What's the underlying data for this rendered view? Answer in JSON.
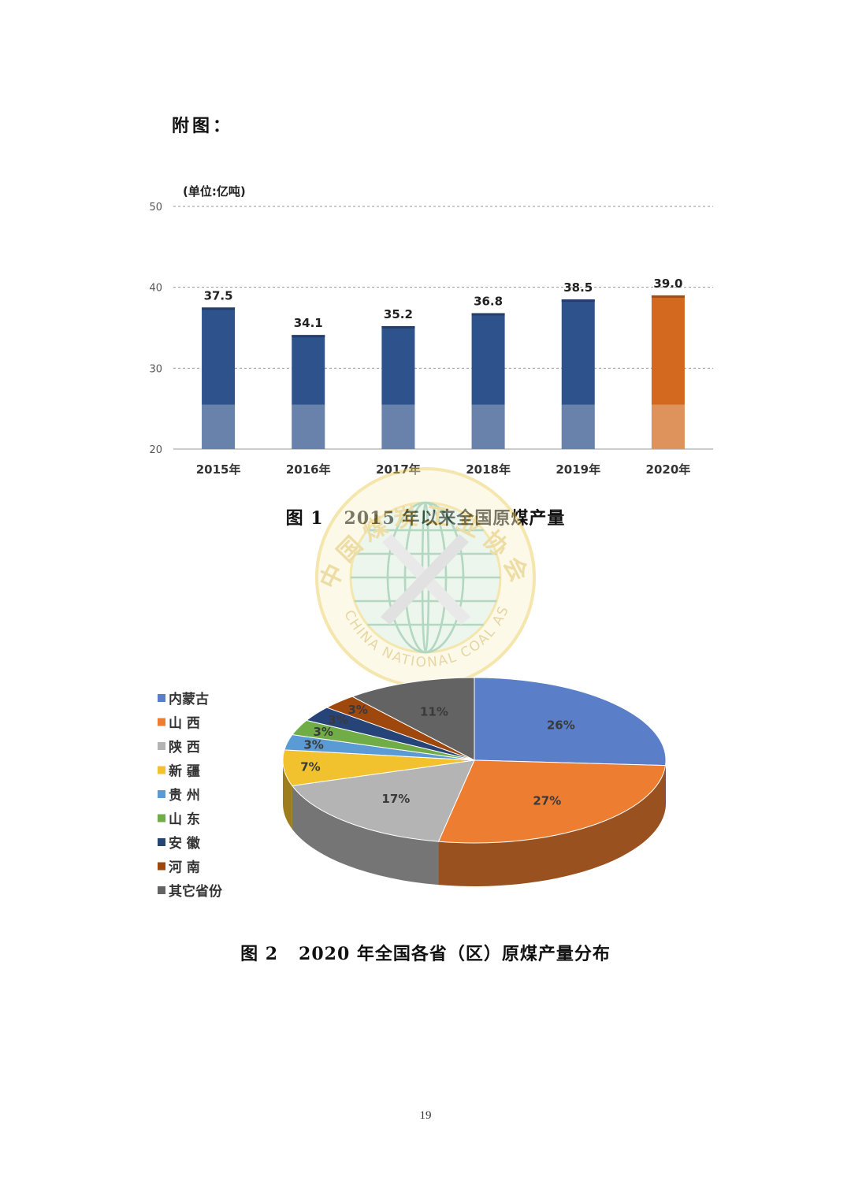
{
  "page": {
    "appendix_heading": "附图：",
    "page_number": "19"
  },
  "figure1": {
    "caption_number": "图 1",
    "caption_text": "2015 年以来全国原煤产量"
  },
  "figure2": {
    "caption_number": "图 2",
    "caption_text": "2020 年全国各省（区）原煤产量分布"
  },
  "watermark": {
    "name_cn": "中国煤炭工业协会",
    "name_en": "CHINA NATIONAL COAL ASSOCIATION"
  },
  "colors": {
    "bar_default": "#2e528c",
    "bar_highlight": "#d2691e",
    "gridline": "#9a9a9a",
    "watermark_gold": "#e8c94a",
    "watermark_green": "#5aa77a"
  },
  "chart_data": [
    {
      "type": "bar",
      "title": "",
      "unit_label": "(单位:亿吨)",
      "categories": [
        "2015年",
        "2016年",
        "2017年",
        "2018年",
        "2019年",
        "2020年"
      ],
      "values": [
        37.5,
        34.1,
        35.2,
        36.8,
        38.5,
        39.0
      ],
      "value_labels": [
        "37.5",
        "34.1",
        "35.2",
        "36.8",
        "38.5",
        "39.0"
      ],
      "highlight_index": 5,
      "ylim": [
        20,
        50
      ],
      "yticks": [
        20,
        30,
        40,
        50
      ],
      "grid": true,
      "xlabel": "",
      "ylabel": ""
    },
    {
      "type": "pie",
      "title": "",
      "legend_position": "left",
      "legend": [
        "内蒙古",
        "山 西",
        "陕 西",
        "新 疆",
        "贵 州",
        "山 东",
        "安 徽",
        "河 南",
        "其它省份"
      ],
      "slices": [
        {
          "label": "内蒙古",
          "value": 26,
          "display": "26%",
          "color": "#5b7ec9"
        },
        {
          "label": "山 西",
          "value": 27,
          "display": "27%",
          "color": "#ed7d31"
        },
        {
          "label": "陕 西",
          "value": 17,
          "display": "17%",
          "color": "#b4b4b4"
        },
        {
          "label": "新 疆",
          "value": 7,
          "display": "7%",
          "color": "#f2c12e"
        },
        {
          "label": "贵 州",
          "value": 3,
          "display": "3%",
          "color": "#5b9bd5"
        },
        {
          "label": "山 东",
          "value": 3,
          "display": "3%",
          "color": "#70ad47"
        },
        {
          "label": "安 徽",
          "value": 3,
          "display": "3%",
          "color": "#264478"
        },
        {
          "label": "河 南",
          "value": 3,
          "display": "3%",
          "color": "#9e480e"
        },
        {
          "label": "其它省份",
          "value": 11,
          "display": "11%",
          "color": "#636363"
        }
      ]
    }
  ]
}
